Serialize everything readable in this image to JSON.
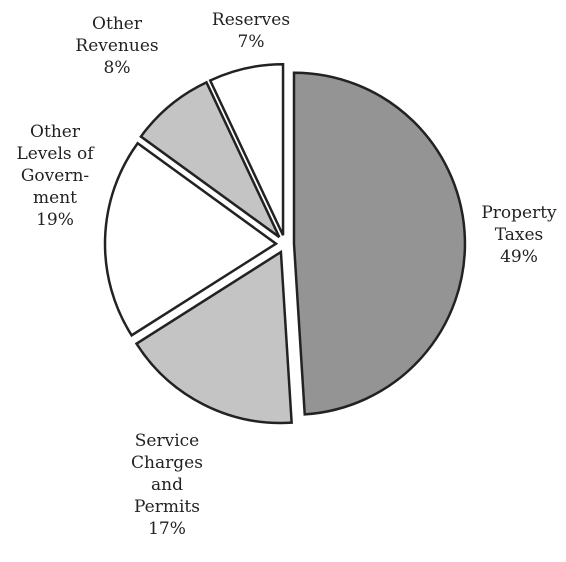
{
  "chart_data": {
    "type": "pie",
    "title": "",
    "slices": [
      {
        "label": [
          "Property",
          "Taxes"
        ],
        "value": 49,
        "value_label": "49%",
        "color": "#949494",
        "exploded": true
      },
      {
        "label": [
          "Service",
          "Charges",
          "and",
          "Permits"
        ],
        "value": 17,
        "value_label": "17%",
        "color": "#c4c4c4",
        "exploded": true
      },
      {
        "label": [
          "Other",
          "Levels of",
          "Govern-",
          "ment"
        ],
        "value": 19,
        "value_label": "19%",
        "color": "#ffffff",
        "exploded": true
      },
      {
        "label": [
          "Other",
          "Revenues"
        ],
        "value": 8,
        "value_label": "8%",
        "color": "#c4c4c4",
        "exploded": true
      },
      {
        "label": [
          "Reserves"
        ],
        "value": 7,
        "value_label": "7%",
        "color": "#ffffff",
        "exploded": true
      }
    ],
    "start": "12 o'clock",
    "direction": "clockwise",
    "slice_outline_color": "#222222"
  }
}
